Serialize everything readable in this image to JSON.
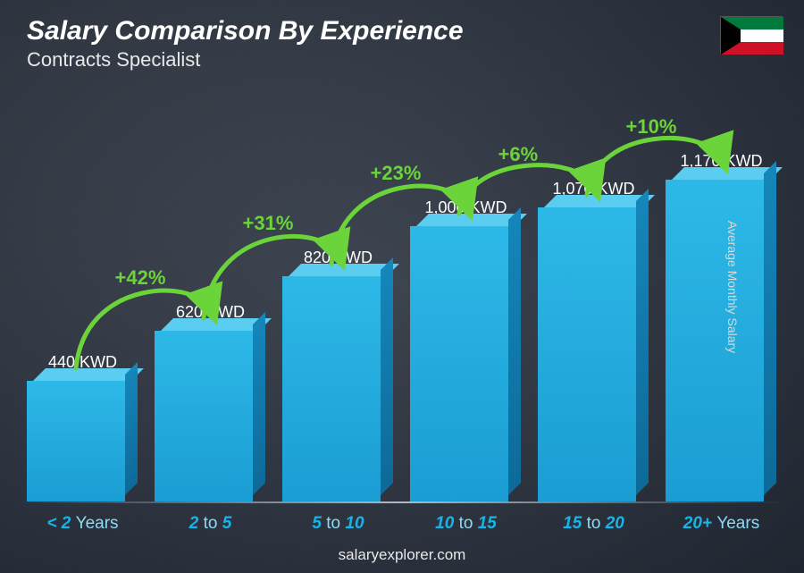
{
  "header": {
    "title": "Salary Comparison By Experience",
    "subtitle": "Contracts Specialist"
  },
  "flag": {
    "name": "kuwait-flag",
    "stripes": [
      "#007a3d",
      "#ffffff",
      "#ce1126"
    ],
    "trapezoid": "#000000"
  },
  "chart": {
    "type": "bar",
    "currency": "KWD",
    "max_value": 1170,
    "bar_colors": {
      "front_top": "#2db9e7",
      "front_bottom": "#1a9dd3",
      "top": "#5acdf0",
      "side_top": "#1586bb",
      "side_bottom": "#0d6a99"
    },
    "arc_color": "#6bd43a",
    "value_font_size": 18,
    "pct_font_size": 22,
    "category_font_size": 19,
    "category_color": "#18b4e8",
    "bars": [
      {
        "category_html": "< 2 <span class='thin'>Years</span>",
        "value": 440,
        "value_label": "440 KWD",
        "pct": null
      },
      {
        "category_html": "2 <span class='thin'>to</span> 5",
        "value": 620,
        "value_label": "620 KWD",
        "pct": "+42%"
      },
      {
        "category_html": "5 <span class='thin'>to</span> 10",
        "value": 820,
        "value_label": "820 KWD",
        "pct": "+31%"
      },
      {
        "category_html": "10 <span class='thin'>to</span> 15",
        "value": 1000,
        "value_label": "1,000 KWD",
        "pct": "+23%"
      },
      {
        "category_html": "15 <span class='thin'>to</span> 20",
        "value": 1070,
        "value_label": "1,070 KWD",
        "pct": "+6%"
      },
      {
        "category_html": "20+ <span class='thin'>Years</span>",
        "value": 1170,
        "value_label": "1,170 KWD",
        "pct": "+10%"
      }
    ]
  },
  "y_axis_label": "Average Monthly Salary",
  "footer": "salaryexplorer.com"
}
